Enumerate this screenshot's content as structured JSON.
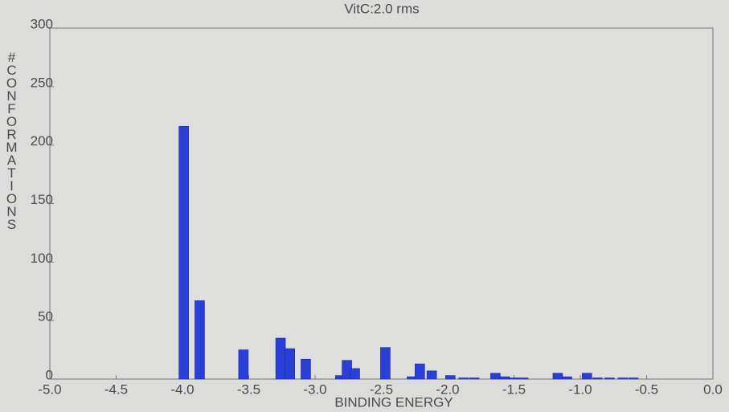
{
  "chart_data": {
    "type": "bar",
    "title": "VitC:2.0 rms",
    "x_label": "BINDING ENERGY",
    "y_label": "#CONFORMATIONS",
    "x": [
      -3.99,
      -3.87,
      -3.54,
      -3.26,
      -3.19,
      -3.07,
      -2.81,
      -2.76,
      -2.7,
      -2.47,
      -2.27,
      -2.21,
      -2.12,
      -1.98,
      -1.88,
      -1.8,
      -1.64,
      -1.57,
      -1.5,
      -1.43,
      -1.17,
      -1.1,
      -0.95,
      -0.87,
      -0.78,
      -0.68,
      -0.6
    ],
    "values": [
      216,
      67,
      25,
      35,
      26,
      17,
      3,
      16,
      9,
      27,
      2,
      13,
      7,
      3,
      1,
      1,
      5,
      2,
      1,
      1,
      5,
      2,
      5,
      1,
      1,
      1,
      1
    ],
    "color": "#2a3fd8",
    "xlim": [
      -5,
      0
    ],
    "xticks": [
      {
        "value": -5,
        "label": "-5.0"
      },
      -4.5,
      {
        "value": -4,
        "label": "-4.0"
      },
      -3.5,
      {
        "value": -3,
        "label": "-3.0"
      },
      -2.5,
      {
        "value": -2,
        "label": "-2.0"
      },
      -1.5,
      {
        "value": -1,
        "label": "-1.0"
      },
      -0.5,
      {
        "value": 0,
        "label": "0.0"
      }
    ],
    "ylim": [
      0,
      300
    ],
    "yticks": [
      0,
      50,
      100,
      150,
      200,
      250,
      300
    ]
  }
}
